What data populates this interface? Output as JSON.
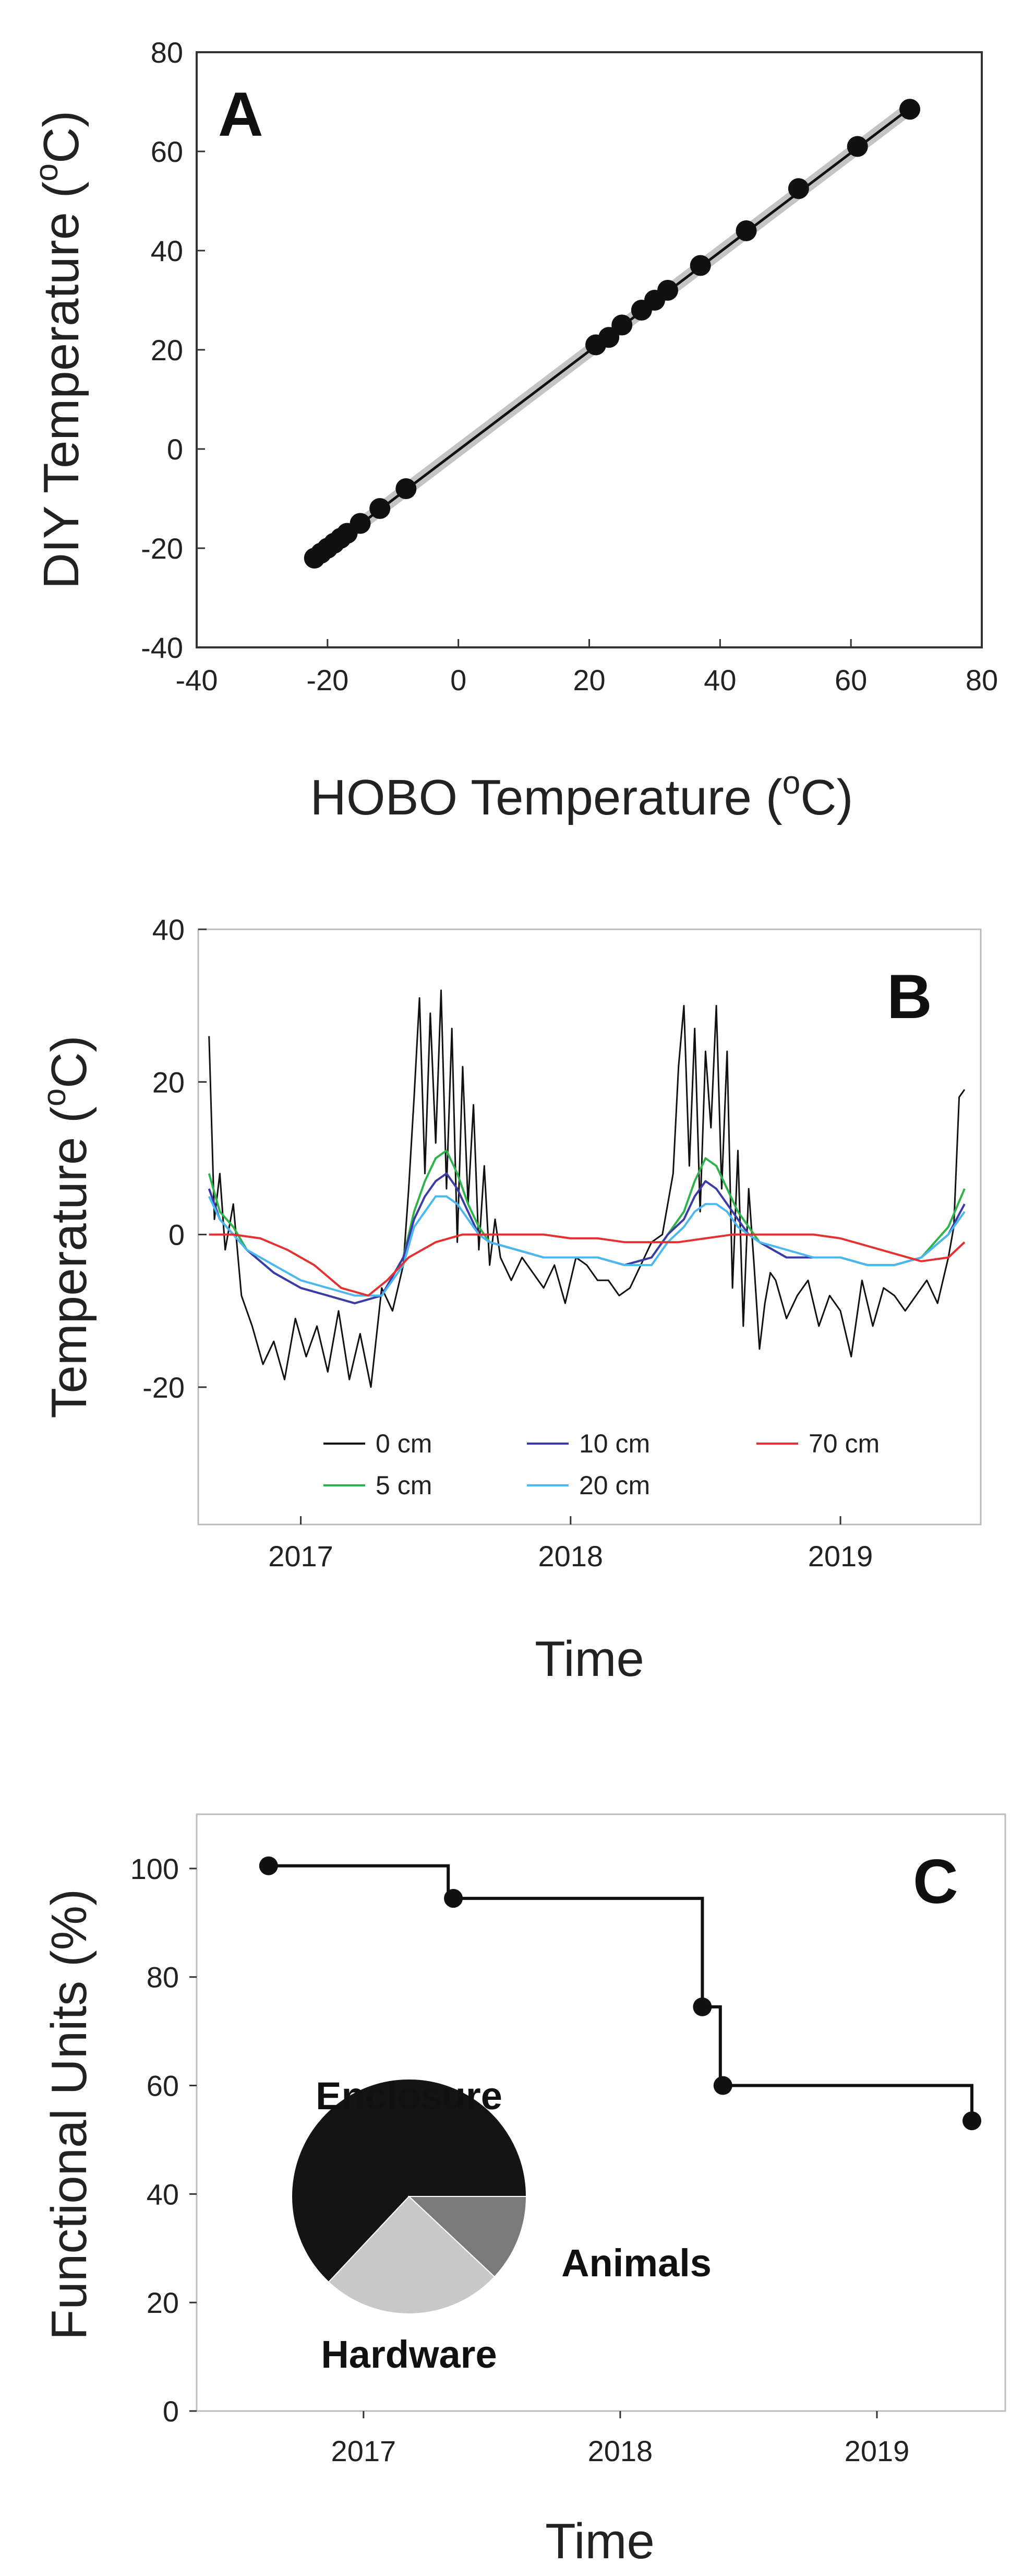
{
  "chart_data": [
    {
      "panel": "A",
      "type": "scatter",
      "title": "",
      "xlabel": "HOBO Temperature (oC)",
      "xlabel_main": "HOBO Temperature (",
      "xlabel_sup": "o",
      "xlabel_tail": "C)",
      "ylabel": "DIY Temperature (oC)",
      "ylabel_main": "DIY Temperature (",
      "ylabel_sup": "o",
      "ylabel_tail": "C)",
      "xlim": [
        -40,
        80
      ],
      "ylim": [
        -40,
        80
      ],
      "xticks": [
        -40,
        -20,
        0,
        20,
        40,
        60,
        80
      ],
      "yticks": [
        -40,
        -20,
        0,
        20,
        40,
        60,
        80
      ],
      "points": [
        {
          "x": -22,
          "y": -22
        },
        {
          "x": -21,
          "y": -21
        },
        {
          "x": -20,
          "y": -20
        },
        {
          "x": -19,
          "y": -19
        },
        {
          "x": -18,
          "y": -18
        },
        {
          "x": -17,
          "y": -17
        },
        {
          "x": -15,
          "y": -15
        },
        {
          "x": -12,
          "y": -12
        },
        {
          "x": -8,
          "y": -8
        },
        {
          "x": 21,
          "y": 21
        },
        {
          "x": 23,
          "y": 22.5
        },
        {
          "x": 25,
          "y": 25
        },
        {
          "x": 28,
          "y": 28
        },
        {
          "x": 30,
          "y": 30
        },
        {
          "x": 32,
          "y": 32
        },
        {
          "x": 37,
          "y": 37
        },
        {
          "x": 44,
          "y": 44
        },
        {
          "x": 52,
          "y": 52.5
        },
        {
          "x": 61,
          "y": 61
        },
        {
          "x": 69,
          "y": 68.5
        }
      ],
      "fit_line": {
        "x0": -22,
        "y0": -22.2,
        "x1": 69,
        "y1": 68.7
      },
      "band_halfwidth": 1.6
    },
    {
      "panel": "B",
      "type": "line",
      "title": "",
      "xlabel": "Time",
      "ylabel": "Temperature (oC)",
      "ylabel_main": "Temperature (",
      "ylabel_sup": "o",
      "ylabel_tail": "C)",
      "xlim": [
        2016.62,
        2019.52
      ],
      "ylim": [
        -38,
        40
      ],
      "xticks": [
        2017,
        2018,
        2019
      ],
      "xtick_labels": [
        "2017",
        "2018",
        "2019"
      ],
      "yticks": [
        -20,
        0,
        20,
        40
      ],
      "series": [
        {
          "name": "0 cm",
          "color": "#111111",
          "x": [
            2016.66,
            2016.68,
            2016.7,
            2016.72,
            2016.75,
            2016.78,
            2016.82,
            2016.86,
            2016.9,
            2016.94,
            2016.98,
            2017.02,
            2017.06,
            2017.1,
            2017.14,
            2017.18,
            2017.22,
            2017.26,
            2017.3,
            2017.34,
            2017.38,
            2017.4,
            2017.42,
            2017.44,
            2017.46,
            2017.48,
            2017.5,
            2017.52,
            2017.54,
            2017.56,
            2017.58,
            2017.6,
            2017.62,
            2017.64,
            2017.66,
            2017.68,
            2017.7,
            2017.72,
            2017.74,
            2017.78,
            2017.82,
            2017.86,
            2017.9,
            2017.94,
            2017.98,
            2018.02,
            2018.06,
            2018.1,
            2018.14,
            2018.18,
            2018.22,
            2018.26,
            2018.3,
            2018.34,
            2018.38,
            2018.4,
            2018.42,
            2018.44,
            2018.46,
            2018.48,
            2018.5,
            2018.52,
            2018.54,
            2018.56,
            2018.58,
            2018.6,
            2018.62,
            2018.64,
            2018.66,
            2018.68,
            2018.7,
            2018.72,
            2018.74,
            2018.76,
            2018.8,
            2018.84,
            2018.88,
            2018.92,
            2018.96,
            2019.0,
            2019.04,
            2019.08,
            2019.12,
            2019.16,
            2019.2,
            2019.24,
            2019.28,
            2019.32,
            2019.36,
            2019.4,
            2019.42,
            2019.44,
            2019.46
          ],
          "y": [
            26,
            2,
            8,
            -2,
            4,
            -8,
            -12,
            -17,
            -14,
            -19,
            -11,
            -16,
            -12,
            -18,
            -10,
            -19,
            -13,
            -20,
            -7,
            -10,
            -4,
            6,
            18,
            31,
            8,
            29,
            12,
            32,
            6,
            27,
            -1,
            22,
            4,
            17,
            -2,
            9,
            -4,
            2,
            -3,
            -6,
            -3,
            -5,
            -7,
            -4,
            -9,
            -3,
            -4,
            -6,
            -6,
            -8,
            -7,
            -4,
            -1,
            0,
            8,
            22,
            30,
            9,
            27,
            3,
            24,
            14,
            30,
            6,
            24,
            -7,
            11,
            -12,
            6,
            -4,
            -15,
            -9,
            -5,
            -6,
            -11,
            -8,
            -6,
            -12,
            -8,
            -10,
            -16,
            -6,
            -12,
            -7,
            -8,
            -10,
            -8,
            -6,
            -9,
            -3,
            1,
            18,
            19
          ]
        },
        {
          "name": "5 cm",
          "color": "#2db34a",
          "x": [
            2016.66,
            2016.7,
            2016.75,
            2016.8,
            2016.9,
            2017.0,
            2017.1,
            2017.2,
            2017.3,
            2017.38,
            2017.42,
            2017.46,
            2017.5,
            2017.54,
            2017.58,
            2017.62,
            2017.66,
            2017.7,
            2017.8,
            2017.9,
            2018.0,
            2018.1,
            2018.2,
            2018.3,
            2018.36,
            2018.42,
            2018.46,
            2018.5,
            2018.54,
            2018.58,
            2018.62,
            2018.66,
            2018.7,
            2018.8,
            2018.9,
            2019.0,
            2019.1,
            2019.2,
            2019.3,
            2019.4,
            2019.46
          ],
          "y": [
            8,
            3,
            1,
            -2,
            -5,
            -7,
            -8,
            -9,
            -8,
            -3,
            3,
            7,
            10,
            11,
            8,
            4,
            1,
            -1,
            -2,
            -3,
            -3,
            -3,
            -4,
            -3,
            0,
            3,
            7,
            10,
            9,
            6,
            3,
            1,
            -1,
            -3,
            -3,
            -3,
            -4,
            -4,
            -3,
            1,
            6
          ]
        },
        {
          "name": "10 cm",
          "color": "#3a3aa8",
          "x": [
            2016.66,
            2016.7,
            2016.75,
            2016.8,
            2016.9,
            2017.0,
            2017.1,
            2017.2,
            2017.3,
            2017.38,
            2017.42,
            2017.46,
            2017.5,
            2017.54,
            2017.58,
            2017.62,
            2017.66,
            2017.7,
            2017.8,
            2017.9,
            2018.0,
            2018.1,
            2018.2,
            2018.3,
            2018.36,
            2018.42,
            2018.46,
            2018.5,
            2018.54,
            2018.58,
            2018.62,
            2018.66,
            2018.7,
            2018.8,
            2018.9,
            2019.0,
            2019.1,
            2019.2,
            2019.3,
            2019.4,
            2019.46
          ],
          "y": [
            6,
            2,
            0,
            -2,
            -5,
            -7,
            -8,
            -9,
            -8,
            -3,
            2,
            5,
            7,
            8,
            6,
            3,
            0,
            -1,
            -2,
            -3,
            -3,
            -3,
            -4,
            -3,
            0,
            2,
            5,
            7,
            6,
            4,
            2,
            0,
            -1,
            -3,
            -3,
            -3,
            -4,
            -4,
            -3,
            0,
            4
          ]
        },
        {
          "name": "20 cm",
          "color": "#4ab8f0",
          "x": [
            2016.66,
            2016.7,
            2016.75,
            2016.8,
            2016.9,
            2017.0,
            2017.1,
            2017.2,
            2017.3,
            2017.38,
            2017.42,
            2017.46,
            2017.5,
            2017.54,
            2017.58,
            2017.62,
            2017.66,
            2017.7,
            2017.8,
            2017.9,
            2018.0,
            2018.1,
            2018.2,
            2018.3,
            2018.36,
            2018.42,
            2018.46,
            2018.5,
            2018.54,
            2018.58,
            2018.62,
            2018.66,
            2018.7,
            2018.8,
            2018.9,
            2019.0,
            2019.1,
            2019.2,
            2019.3,
            2019.4,
            2019.46
          ],
          "y": [
            5,
            2,
            0,
            -2,
            -4,
            -6,
            -7,
            -8,
            -8,
            -4,
            1,
            3,
            5,
            5,
            4,
            2,
            0,
            -1,
            -2,
            -3,
            -3,
            -3,
            -4,
            -4,
            -1,
            1,
            3,
            4,
            4,
            3,
            1,
            0,
            -1,
            -2,
            -3,
            -3,
            -4,
            -4,
            -3,
            0,
            3
          ]
        },
        {
          "name": "70 cm",
          "color": "#e53030",
          "x": [
            2016.66,
            2016.75,
            2016.85,
            2016.95,
            2017.05,
            2017.15,
            2017.25,
            2017.32,
            2017.4,
            2017.5,
            2017.6,
            2017.7,
            2017.8,
            2017.9,
            2018.0,
            2018.1,
            2018.2,
            2018.3,
            2018.4,
            2018.5,
            2018.6,
            2018.7,
            2018.8,
            2018.9,
            2019.0,
            2019.1,
            2019.2,
            2019.3,
            2019.4,
            2019.46
          ],
          "y": [
            0,
            0,
            -0.5,
            -2,
            -4,
            -7,
            -8,
            -6,
            -3,
            -1,
            0,
            0,
            0,
            0,
            -0.5,
            -0.5,
            -1,
            -1,
            -1,
            -0.5,
            0,
            0,
            0,
            0,
            -0.5,
            -1.5,
            -2.5,
            -3.5,
            -3,
            -1
          ]
        }
      ],
      "legend": [
        {
          "label": "0 cm",
          "color": "#111111"
        },
        {
          "label": "10 cm",
          "color": "#3a3aa8"
        },
        {
          "label": "70 cm",
          "color": "#e53030"
        },
        {
          "label": "5 cm",
          "color": "#2db34a"
        },
        {
          "label": "20 cm",
          "color": "#4ab8f0"
        }
      ]
    },
    {
      "panel": "C",
      "type": "line",
      "title": "",
      "xlabel": "Time",
      "ylabel": "Functional Units (%)",
      "xlim": [
        2016.35,
        2019.5
      ],
      "ylim": [
        0,
        110
      ],
      "xticks": [
        2017,
        2018,
        2019
      ],
      "xtick_labels": [
        "2017",
        "2018",
        "2019"
      ],
      "yticks": [
        0,
        20,
        40,
        60,
        80,
        100
      ],
      "points": [
        {
          "x": 2016.63,
          "y": 100.5
        },
        {
          "x": 2017.35,
          "y": 94.5
        },
        {
          "x": 2018.32,
          "y": 74.5
        },
        {
          "x": 2018.4,
          "y": 60
        },
        {
          "x": 2019.37,
          "y": 53.5
        }
      ],
      "step_path": [
        [
          2016.63,
          100.5
        ],
        [
          2017.33,
          100.5
        ],
        [
          2017.33,
          94.5
        ],
        [
          2018.32,
          94.5
        ],
        [
          2018.32,
          74.5
        ],
        [
          2018.39,
          74.5
        ],
        [
          2018.39,
          60
        ],
        [
          2019.37,
          60
        ],
        [
          2019.37,
          53.5
        ]
      ],
      "pie": [
        {
          "label": "Enclosure",
          "value": 63,
          "color": "#141414"
        },
        {
          "label": "Animals",
          "value": 12,
          "color": "#7a7a7a"
        },
        {
          "label": "Hardware",
          "value": 25,
          "color": "#c8c8c8"
        }
      ]
    }
  ]
}
